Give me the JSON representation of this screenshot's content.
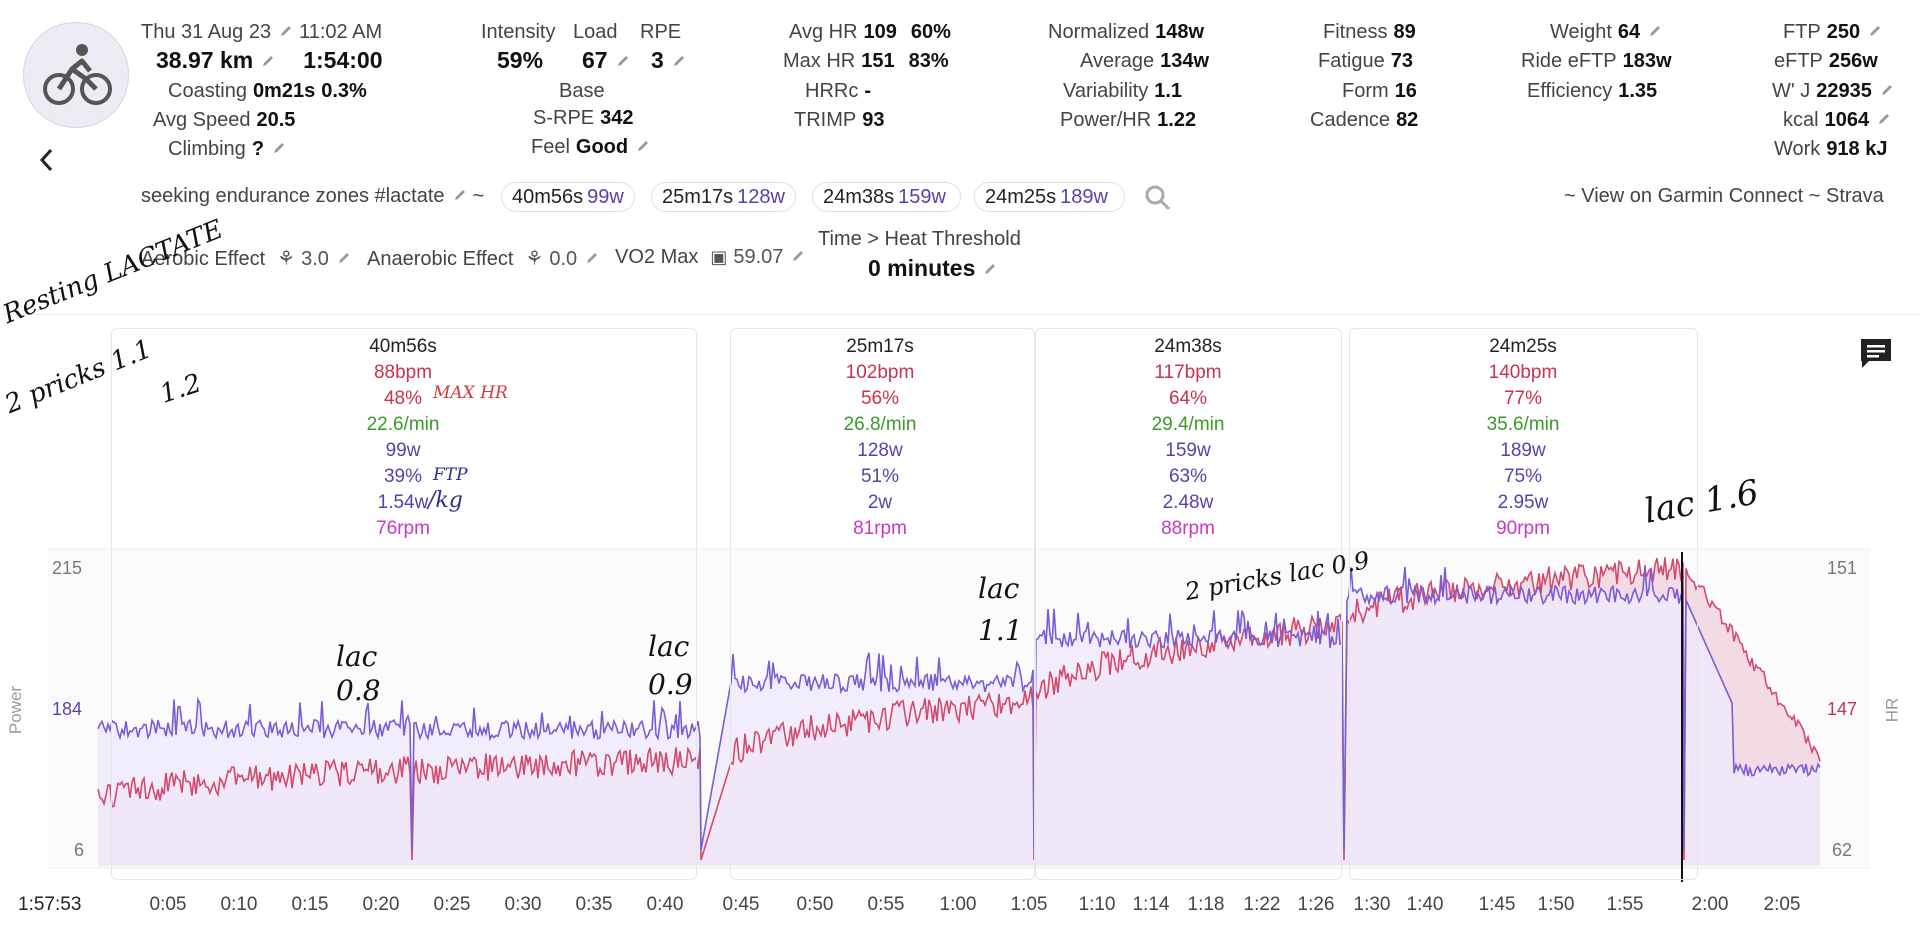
{
  "header": {
    "date": "Thu 31 Aug 23",
    "time": "11:02 AM",
    "distance": "38.97 km",
    "duration": "1:54:00",
    "coasting_label": "Coasting",
    "coasting_value": "0m21s",
    "coasting_pct": "0.3%",
    "avg_speed_label": "Avg Speed",
    "avg_speed_value": "20.5",
    "climbing_label": "Climbing",
    "climbing_value": "?"
  },
  "intensity": {
    "intensity_label": "Intensity",
    "intensity_value": "59%",
    "load_label": "Load",
    "load_value": "67",
    "rpe_label": "RPE",
    "rpe_value": "3",
    "base_label": "Base",
    "srpe_label": "S-RPE",
    "srpe_value": "342",
    "feel_label": "Feel",
    "feel_value": "Good"
  },
  "hr": {
    "avg_label": "Avg HR",
    "avg_value": "109",
    "avg_pct": "60%",
    "max_label": "Max HR",
    "max_value": "151",
    "max_pct": "83%",
    "hrrc_label": "HRRc",
    "hrrc_value": "-",
    "trimp_label": "TRIMP",
    "trimp_value": "93"
  },
  "power": {
    "normalized_label": "Normalized",
    "normalized_value": "148w",
    "average_label": "Average",
    "average_value": "134w",
    "variability_label": "Variability",
    "variability_value": "1.1",
    "powerhr_label": "Power/HR",
    "powerhr_value": "1.22"
  },
  "fitness": {
    "fitness_label": "Fitness",
    "fitness_value": "89",
    "fatigue_label": "Fatigue",
    "fatigue_value": "73",
    "form_label": "Form",
    "form_value": "16",
    "cadence_label": "Cadence",
    "cadence_value": "82"
  },
  "weight": {
    "weight_label": "Weight",
    "weight_value": "64",
    "ride_eftp_label": "Ride eFTP",
    "ride_eftp_value": "183w",
    "efficiency_label": "Efficiency",
    "efficiency_value": "1.35"
  },
  "ftp": {
    "ftp_label": "FTP",
    "ftp_value": "250",
    "eftp_label": "eFTP",
    "eftp_value": "256w",
    "wj_label": "W' J",
    "wj_value": "22935",
    "kcal_label": "kcal",
    "kcal_value": "1064",
    "work_label": "Work",
    "work_value": "918 kJ"
  },
  "description": "seeking endurance zones #lactate",
  "tilde": "~",
  "intervals_chips": [
    {
      "time": "40m56s",
      "watts": "99w"
    },
    {
      "time": "25m17s",
      "watts": "128w"
    },
    {
      "time": "24m38s",
      "watts": "159w"
    },
    {
      "time": "24m25s",
      "watts": "189w"
    }
  ],
  "links": "~ View on Garmin Connect ~ Strava",
  "effects": {
    "aerobic_label": "Aerobic Effect",
    "aerobic_value": "3.0",
    "anaerobic_label": "Anaerobic Effect",
    "anaerobic_value": "0.0",
    "vo2_label": "VO2 Max",
    "vo2_value": "59.07",
    "heat_label": "Time > Heat Threshold",
    "heat_value": "0 minutes"
  },
  "panels": [
    {
      "time": "40m56s",
      "hr": "88bpm",
      "hr_pct": "48%",
      "speed": "22.6/min",
      "watts": "99w",
      "ftp_pct": "39%",
      "wkg": "1.54w",
      "cadence": "76rpm"
    },
    {
      "time": "25m17s",
      "hr": "102bpm",
      "hr_pct": "56%",
      "speed": "26.8/min",
      "watts": "128w",
      "ftp_pct": "51%",
      "wkg": "2w",
      "cadence": "81rpm"
    },
    {
      "time": "24m38s",
      "hr": "117bpm",
      "hr_pct": "64%",
      "speed": "29.4/min",
      "watts": "159w",
      "ftp_pct": "63%",
      "wkg": "2.48w",
      "cadence": "88rpm"
    },
    {
      "time": "24m25s",
      "hr": "140bpm",
      "hr_pct": "77%",
      "speed": "35.6/min",
      "watts": "189w",
      "ftp_pct": "75%",
      "wkg": "2.95w",
      "cadence": "90rpm"
    }
  ],
  "chart": {
    "left_axis_title": "Power",
    "right_axis_title": "HR",
    "left_ticks": [
      "215",
      "184",
      "6"
    ],
    "right_ticks": [
      "151",
      "147",
      "62"
    ],
    "x_ticks": [
      "0:05",
      "0:10",
      "0:15",
      "0:20",
      "0:25",
      "0:30",
      "0:35",
      "0:40",
      "0:45",
      "0:50",
      "0:55",
      "1:00",
      "1:05",
      "1:10",
      "1:14",
      "1:18",
      "1:22",
      "1:26",
      "1:30",
      "1:40",
      "1:45",
      "1:50",
      "1:55",
      "2:00",
      "2:05"
    ],
    "cursor_time": "1:57:53"
  },
  "annotations": {
    "resting_1": "Resting LACTATE",
    "resting_2": "2 pricks 1.1",
    "resting_3": "1.2",
    "max_hr": "MAX HR",
    "ftp": "FTP",
    "per_kg": "/kg",
    "lac_1": "lac 0.8",
    "lac_2": "lac 0.9",
    "lac_3": "lac 1.1",
    "lac_4": "2 pricks lac 0.9",
    "lac_5": "lac 1.6"
  },
  "colors": {
    "hr": "#c8334e",
    "power": "#7b5cd6",
    "speed": "#3a9a2a",
    "cadence": "#c639c6",
    "hr_fill": "#f3dbe6",
    "power_fill": "#eeeafb"
  }
}
